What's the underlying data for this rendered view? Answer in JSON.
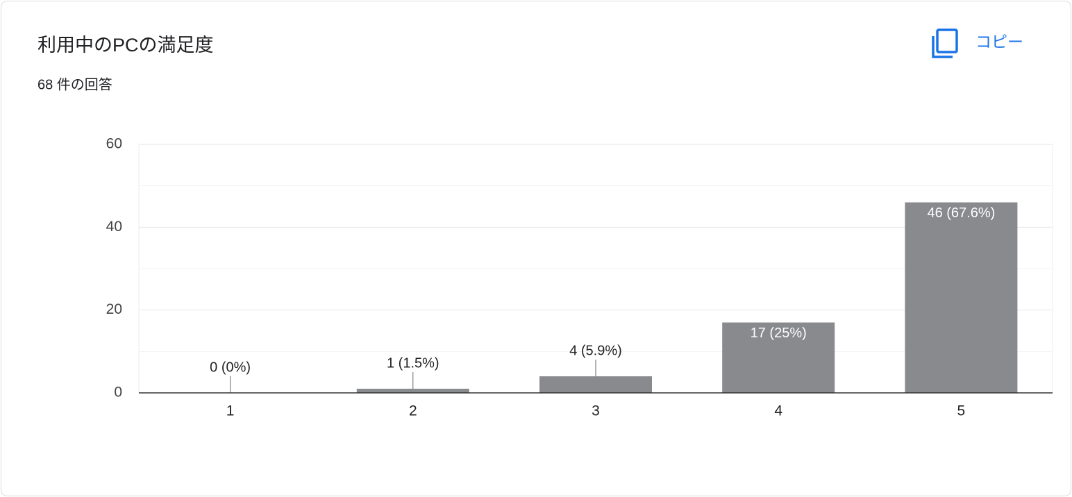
{
  "chart_data": {
    "type": "bar",
    "title": "利用中のPCの満足度",
    "subtitle": "68 件の回答",
    "copy_button": "コピー",
    "categories": [
      "1",
      "2",
      "3",
      "4",
      "5"
    ],
    "values": [
      0,
      1,
      4,
      17,
      46
    ],
    "value_labels": [
      "0 (0%)",
      "1 (1.5%)",
      "4 (5.9%)",
      "17 (25%)",
      "46 (67.6%)"
    ],
    "color": "#898a8e",
    "ylim": [
      0,
      60
    ],
    "yticks": [
      0,
      20,
      40,
      60
    ],
    "minor_yticks": [
      10,
      30,
      50
    ],
    "grid": true
  }
}
